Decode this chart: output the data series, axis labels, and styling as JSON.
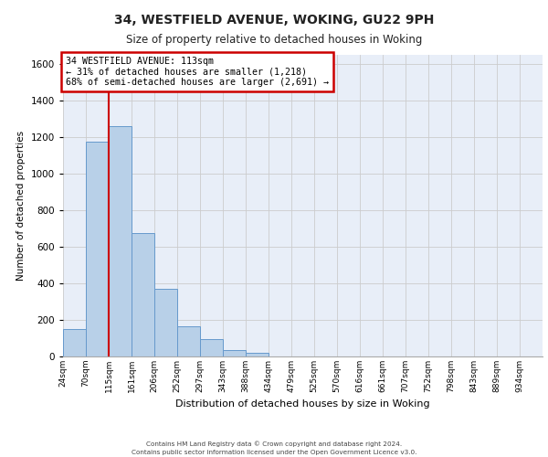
{
  "title": "34, WESTFIELD AVENUE, WOKING, GU22 9PH",
  "subtitle": "Size of property relative to detached houses in Woking",
  "xlabel": "Distribution of detached houses by size in Woking",
  "ylabel": "Number of detached properties",
  "bin_labels": [
    "24sqm",
    "70sqm",
    "115sqm",
    "161sqm",
    "206sqm",
    "252sqm",
    "297sqm",
    "343sqm",
    "388sqm",
    "434sqm",
    "479sqm",
    "525sqm",
    "570sqm",
    "616sqm",
    "661sqm",
    "707sqm",
    "752sqm",
    "798sqm",
    "843sqm",
    "889sqm",
    "934sqm"
  ],
  "bar_values": [
    150,
    1175,
    1258,
    675,
    370,
    165,
    93,
    35,
    22,
    0,
    0,
    0,
    0,
    0,
    0,
    0,
    0,
    0,
    0,
    0
  ],
  "bar_color": "#b8d0e8",
  "bar_edge_color": "#6699cc",
  "vline_color": "#cc0000",
  "annotation_title": "34 WESTFIELD AVENUE: 113sqm",
  "annotation_line1": "← 31% of detached houses are smaller (1,218)",
  "annotation_line2": "68% of semi-detached houses are larger (2,691) →",
  "annotation_box_color": "#ffffff",
  "annotation_box_edge": "#cc0000",
  "ylim": [
    0,
    1650
  ],
  "yticks": [
    0,
    200,
    400,
    600,
    800,
    1000,
    1200,
    1400,
    1600
  ],
  "grid_color": "#cccccc",
  "background_color": "#e8eef8",
  "footer_line1": "Contains HM Land Registry data © Crown copyright and database right 2024.",
  "footer_line2": "Contains public sector information licensed under the Open Government Licence v3.0."
}
